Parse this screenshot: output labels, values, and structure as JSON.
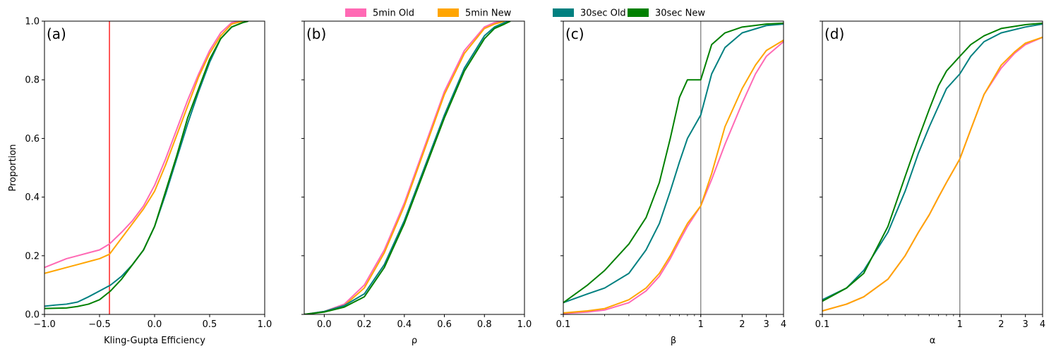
{
  "chart_data": {
    "type": "line",
    "legend": {
      "placement": "top-center",
      "entries": [
        {
          "label": "5min Old",
          "color": "#ff69b4"
        },
        {
          "label": "5min New",
          "color": "#ffa500"
        },
        {
          "label": "30sec Old",
          "color": "#008080"
        },
        {
          "label": "30sec New",
          "color": "#008000"
        }
      ]
    },
    "shared_y": {
      "label": "Proportion",
      "ylim": [
        0,
        1
      ],
      "ticks": [
        "0.0",
        "0.2",
        "0.4",
        "0.6",
        "0.8",
        "1.0"
      ]
    },
    "panels": [
      {
        "letter": "(a)",
        "xlabel": "Kling-Gupta Efficiency",
        "xscale": "linear",
        "xlim": [
          -1.0,
          1.0
        ],
        "xticks": [
          {
            "v": -1.0,
            "t": "−1.0"
          },
          {
            "v": -0.5,
            "t": "−0.5"
          },
          {
            "v": 0.0,
            "t": "0.0"
          },
          {
            "v": 0.5,
            "t": "0.5"
          },
          {
            "v": 1.0,
            "t": "1.0"
          }
        ],
        "refline": {
          "x": -0.41,
          "color": "#ff0000"
        },
        "series": [
          {
            "name": "5min Old",
            "x": [
              -1.0,
              -0.9,
              -0.8,
              -0.7,
              -0.6,
              -0.5,
              -0.41,
              -0.3,
              -0.2,
              -0.1,
              0.0,
              0.1,
              0.2,
              0.3,
              0.4,
              0.5,
              0.6,
              0.7,
              0.8
            ],
            "y": [
              0.16,
              0.175,
              0.19,
              0.2,
              0.21,
              0.22,
              0.24,
              0.28,
              0.32,
              0.37,
              0.44,
              0.53,
              0.63,
              0.73,
              0.82,
              0.9,
              0.96,
              0.995,
              1.0
            ]
          },
          {
            "name": "5min New",
            "x": [
              -1.0,
              -0.9,
              -0.8,
              -0.7,
              -0.6,
              -0.5,
              -0.41,
              -0.3,
              -0.2,
              -0.1,
              0.0,
              0.1,
              0.2,
              0.3,
              0.4,
              0.5,
              0.6,
              0.7,
              0.8
            ],
            "y": [
              0.14,
              0.15,
              0.16,
              0.17,
              0.18,
              0.19,
              0.205,
              0.26,
              0.31,
              0.36,
              0.42,
              0.51,
              0.61,
              0.71,
              0.81,
              0.89,
              0.95,
              0.99,
              1.0
            ]
          },
          {
            "name": "30sec Old",
            "x": [
              -1.0,
              -0.9,
              -0.8,
              -0.7,
              -0.6,
              -0.5,
              -0.4,
              -0.3,
              -0.2,
              -0.1,
              0.0,
              0.1,
              0.2,
              0.3,
              0.4,
              0.5,
              0.6,
              0.7,
              0.8,
              0.85
            ],
            "y": [
              0.028,
              0.032,
              0.035,
              0.042,
              0.06,
              0.08,
              0.1,
              0.13,
              0.17,
              0.22,
              0.3,
              0.41,
              0.53,
              0.65,
              0.76,
              0.86,
              0.94,
              0.98,
              0.995,
              1.0
            ]
          },
          {
            "name": "30sec New",
            "x": [
              -1.0,
              -0.9,
              -0.8,
              -0.7,
              -0.6,
              -0.5,
              -0.4,
              -0.3,
              -0.2,
              -0.1,
              0.0,
              0.1,
              0.2,
              0.3,
              0.4,
              0.5,
              0.6,
              0.7,
              0.8,
              0.85
            ],
            "y": [
              0.02,
              0.021,
              0.022,
              0.027,
              0.035,
              0.05,
              0.08,
              0.12,
              0.17,
              0.22,
              0.3,
              0.42,
              0.54,
              0.67,
              0.77,
              0.87,
              0.94,
              0.98,
              0.995,
              1.0
            ]
          }
        ]
      },
      {
        "letter": "(b)",
        "xlabel": "ρ",
        "xscale": "linear",
        "xlim": [
          -0.1,
          1.0
        ],
        "xticks": [
          {
            "v": 0.0,
            "t": "0.0"
          },
          {
            "v": 0.2,
            "t": "0.2"
          },
          {
            "v": 0.4,
            "t": "0.4"
          },
          {
            "v": 0.6,
            "t": "0.6"
          },
          {
            "v": 0.8,
            "t": "0.8"
          },
          {
            "v": 1.0,
            "t": "1.0"
          }
        ],
        "series": [
          {
            "name": "5min Old",
            "x": [
              -0.1,
              0.0,
              0.1,
              0.2,
              0.3,
              0.4,
              0.5,
              0.6,
              0.7,
              0.8,
              0.85,
              0.9
            ],
            "y": [
              0.0,
              0.01,
              0.035,
              0.1,
              0.22,
              0.38,
              0.57,
              0.76,
              0.9,
              0.98,
              0.995,
              1.0
            ]
          },
          {
            "name": "5min New",
            "x": [
              -0.1,
              0.0,
              0.1,
              0.2,
              0.3,
              0.4,
              0.5,
              0.6,
              0.7,
              0.8,
              0.85,
              0.9
            ],
            "y": [
              0.0,
              0.01,
              0.03,
              0.09,
              0.21,
              0.37,
              0.56,
              0.75,
              0.89,
              0.975,
              0.99,
              1.0
            ]
          },
          {
            "name": "30sec Old",
            "x": [
              -0.1,
              0.0,
              0.1,
              0.2,
              0.3,
              0.4,
              0.5,
              0.6,
              0.7,
              0.8,
              0.85,
              0.9,
              0.93
            ],
            "y": [
              0.0,
              0.01,
              0.03,
              0.07,
              0.17,
              0.32,
              0.5,
              0.68,
              0.84,
              0.95,
              0.98,
              0.995,
              1.0
            ]
          },
          {
            "name": "30sec New",
            "x": [
              -0.1,
              0.0,
              0.1,
              0.2,
              0.3,
              0.4,
              0.5,
              0.6,
              0.7,
              0.8,
              0.85,
              0.9,
              0.93
            ],
            "y": [
              0.0,
              0.008,
              0.025,
              0.06,
              0.16,
              0.31,
              0.49,
              0.67,
              0.83,
              0.94,
              0.975,
              0.99,
              1.0
            ]
          }
        ]
      },
      {
        "letter": "(c)",
        "xlabel": "β",
        "xscale": "log",
        "xlim": [
          0.1,
          4
        ],
        "xticks": [
          {
            "v": 0.1,
            "t": "0.1"
          },
          {
            "v": 1,
            "t": "1"
          },
          {
            "v": 2,
            "t": "2"
          },
          {
            "v": 3,
            "t": "3"
          },
          {
            "v": 4,
            "t": "4"
          }
        ],
        "refline": {
          "x": 1,
          "color": "#808080"
        },
        "series": [
          {
            "name": "5min Old",
            "x": [
              0.1,
              0.15,
              0.2,
              0.3,
              0.4,
              0.5,
              0.6,
              0.7,
              0.8,
              1.0,
              1.2,
              1.5,
              2.0,
              2.5,
              3.0,
              4.0
            ],
            "y": [
              0.003,
              0.008,
              0.015,
              0.04,
              0.08,
              0.13,
              0.19,
              0.25,
              0.3,
              0.37,
              0.46,
              0.58,
              0.72,
              0.82,
              0.88,
              0.93
            ]
          },
          {
            "name": "5min New",
            "x": [
              0.1,
              0.15,
              0.2,
              0.3,
              0.4,
              0.5,
              0.6,
              0.7,
              0.8,
              1.0,
              1.2,
              1.5,
              2.0,
              2.5,
              3.0,
              4.0
            ],
            "y": [
              0.005,
              0.012,
              0.02,
              0.05,
              0.09,
              0.14,
              0.2,
              0.26,
              0.31,
              0.37,
              0.48,
              0.64,
              0.77,
              0.85,
              0.9,
              0.935
            ]
          },
          {
            "name": "30sec Old",
            "x": [
              0.1,
              0.15,
              0.2,
              0.3,
              0.4,
              0.5,
              0.6,
              0.7,
              0.8,
              1.0,
              1.2,
              1.5,
              2.0,
              3.0,
              4.0
            ],
            "y": [
              0.04,
              0.07,
              0.09,
              0.14,
              0.22,
              0.31,
              0.42,
              0.52,
              0.6,
              0.68,
              0.82,
              0.91,
              0.96,
              0.985,
              0.99
            ]
          },
          {
            "name": "30sec New",
            "x": [
              0.1,
              0.15,
              0.2,
              0.3,
              0.4,
              0.5,
              0.6,
              0.7,
              0.8,
              1.0,
              1.2,
              1.5,
              2.0,
              3.0,
              4.0
            ],
            "y": [
              0.04,
              0.1,
              0.15,
              0.24,
              0.33,
              0.45,
              0.6,
              0.74,
              0.8,
              0.8,
              0.92,
              0.96,
              0.98,
              0.99,
              0.993
            ]
          }
        ]
      },
      {
        "letter": "(d)",
        "xlabel": "α",
        "xscale": "log",
        "xlim": [
          0.1,
          4
        ],
        "xticks": [
          {
            "v": 0.1,
            "t": "0.1"
          },
          {
            "v": 1,
            "t": "1"
          },
          {
            "v": 2,
            "t": "2"
          },
          {
            "v": 3,
            "t": "3"
          },
          {
            "v": 4,
            "t": "4"
          }
        ],
        "refline": {
          "x": 1,
          "color": "#808080"
        },
        "series": [
          {
            "name": "5min Old",
            "x": [
              0.1,
              0.15,
              0.2,
              0.3,
              0.4,
              0.5,
              0.6,
              0.7,
              0.8,
              1.0,
              1.2,
              1.5,
              2.0,
              2.5,
              3.0,
              4.0
            ],
            "y": [
              0.012,
              0.035,
              0.06,
              0.12,
              0.2,
              0.28,
              0.34,
              0.4,
              0.45,
              0.53,
              0.63,
              0.75,
              0.84,
              0.89,
              0.92,
              0.945
            ]
          },
          {
            "name": "5min New",
            "x": [
              0.1,
              0.15,
              0.2,
              0.3,
              0.4,
              0.5,
              0.6,
              0.7,
              0.8,
              1.0,
              1.2,
              1.5,
              2.0,
              2.5,
              3.0,
              4.0
            ],
            "y": [
              0.012,
              0.035,
              0.06,
              0.12,
              0.2,
              0.28,
              0.34,
              0.4,
              0.45,
              0.53,
              0.63,
              0.75,
              0.85,
              0.895,
              0.925,
              0.945
            ]
          },
          {
            "name": "30sec Old",
            "x": [
              0.1,
              0.15,
              0.2,
              0.3,
              0.4,
              0.5,
              0.6,
              0.7,
              0.8,
              1.0,
              1.2,
              1.5,
              2.0,
              3.0,
              4.0
            ],
            "y": [
              0.05,
              0.09,
              0.15,
              0.28,
              0.42,
              0.55,
              0.64,
              0.71,
              0.77,
              0.82,
              0.88,
              0.93,
              0.96,
              0.98,
              0.99
            ]
          },
          {
            "name": "30sec New",
            "x": [
              0.1,
              0.15,
              0.2,
              0.3,
              0.4,
              0.5,
              0.6,
              0.7,
              0.8,
              1.0,
              1.2,
              1.5,
              2.0,
              3.0,
              4.0
            ],
            "y": [
              0.045,
              0.09,
              0.14,
              0.3,
              0.47,
              0.6,
              0.7,
              0.78,
              0.83,
              0.88,
              0.92,
              0.95,
              0.975,
              0.988,
              0.993
            ]
          }
        ]
      }
    ]
  }
}
